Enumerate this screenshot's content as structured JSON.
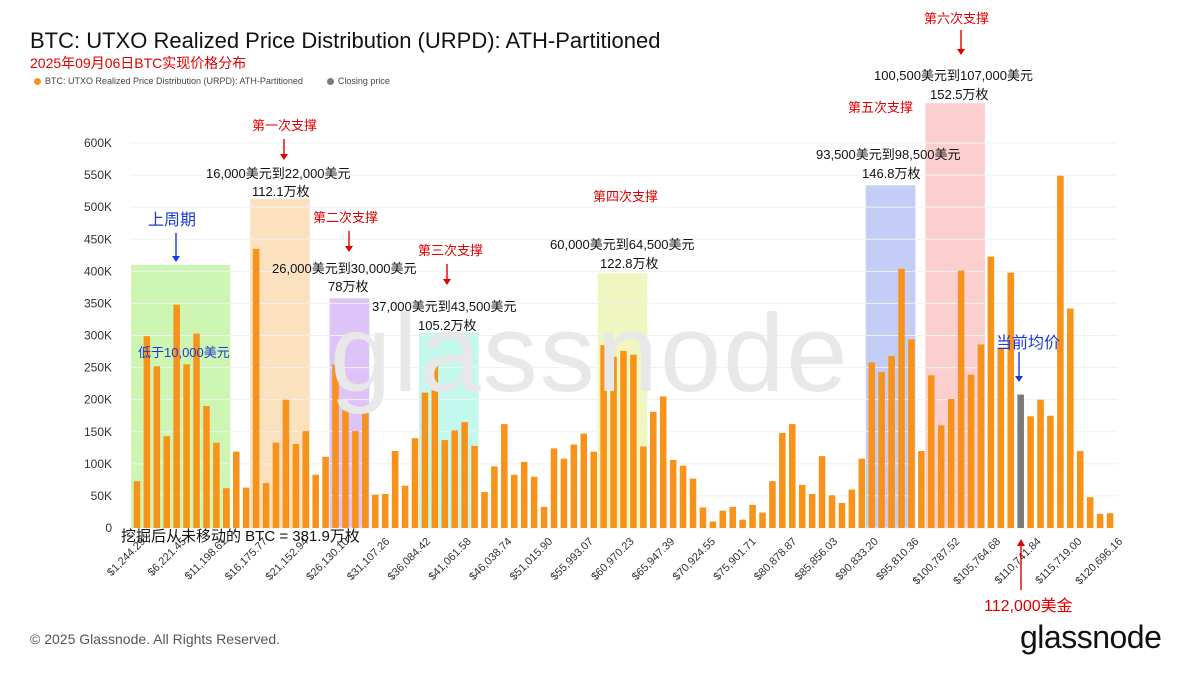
{
  "header": {
    "title": "BTC: UTXO Realized Price Distribution (URPD): ATH-Partitioned",
    "subtitle": "2025年09月06日BTC实现价格分布"
  },
  "legend": {
    "series_label": "BTC: UTXO Realized Price Distribution (URPD): ATH-Partitioned",
    "closing_label": "Closing price"
  },
  "footer": {
    "copyright": "© 2025 Glassnode. All Rights Reserved.",
    "logo": "glassnode"
  },
  "watermark": "glassnode",
  "annotations": {
    "prev_cycle": "上周期",
    "below_10k": "低于10,000美元",
    "s1_title": "第一次支撑",
    "s1_range": "16,000美元到22,000美元",
    "s1_amount": "112.1万枚",
    "s2_title": "第二次支撑",
    "s2_range": "26,000美元到30,000美元",
    "s2_amount": "78万枚",
    "s3_title": "第三次支撑",
    "s3_range": "37,000美元到43,500美元",
    "s3_amount": "105.2万枚",
    "s4_title": "第四次支撑",
    "s4_range": "60,000美元到64,500美元",
    "s4_amount": "122.8万枚",
    "s5_title": "第五次支撑",
    "s5_range": "93,500美元到98,500美元",
    "s5_amount": "146.8万枚",
    "s6_title": "第六次支撑",
    "s6_range": "100,500美元到107,000美元",
    "s6_amount": "152.5万枚",
    "avg_price": "当前均价",
    "price_112k": "112,000美金",
    "unmoved": "挖掘后从未移动的 BTC = 381.9万枚"
  },
  "colors": {
    "bar": "#f7931a",
    "closing": "#7a7a7a",
    "zone_green": "#c6f5a6",
    "zone_orange": "#fbdcb4",
    "zone_purple": "#d7b8f6",
    "zone_cyan": "#b8f7ea",
    "zone_yellow": "#ecf5b5",
    "zone_blue": "#b9c4f5",
    "zone_pink": "#fbc7c7",
    "annotation_red": "#e00000",
    "annotation_blue": "#1a3ad6"
  },
  "chart_data": {
    "type": "bar",
    "ylim": [
      0,
      600000
    ],
    "y_ticks": [
      "0",
      "50K",
      "100K",
      "150K",
      "200K",
      "250K",
      "300K",
      "350K",
      "400K",
      "450K",
      "500K",
      "550K",
      "600K"
    ],
    "x_tick_labels": [
      "$1,244.29",
      "$6,221.45",
      "$11,198.61",
      "$16,175.77",
      "$21,152.94",
      "$26,130.10",
      "$31,107.26",
      "$36,084.42",
      "$41,061.58",
      "$46,038.74",
      "$51,015.90",
      "$55,993.07",
      "$60,970.23",
      "$65,947.39",
      "$70,924.55",
      "$75,901.71",
      "$80,878.87",
      "$85,856.03",
      "$90,833.20",
      "$95,810.36",
      "$100,787.52",
      "$105,764.68",
      "$110,741.84",
      "$115,719.00",
      "$120,696.16"
    ],
    "series": [
      {
        "name": "BTC: UTXO Realized Price Distribution (URPD): ATH-Partitioned",
        "values": [
          73000,
          299000,
          252000,
          143000,
          348000,
          255000,
          303000,
          190000,
          133000,
          62000,
          119000,
          63000,
          435000,
          70000,
          133000,
          200000,
          131000,
          151000,
          83000,
          111000,
          255000,
          183000,
          151000,
          190000,
          52000,
          53000,
          120000,
          66000,
          140000,
          211000,
          256000,
          137000,
          152000,
          165000,
          128000,
          56000,
          96000,
          162000,
          83000,
          103000,
          80000,
          33000,
          124000,
          108000,
          130000,
          147000,
          119000,
          285000,
          267000,
          276000,
          270000,
          127000,
          181000,
          205000,
          106000,
          97000,
          77000,
          32000,
          10000,
          27000,
          33000,
          13000,
          36000,
          24000,
          73000,
          148000,
          162000,
          67000,
          53000,
          112000,
          51000,
          39000,
          60000,
          108000,
          258000,
          243000,
          268000,
          404000,
          294000,
          120000,
          238000,
          160000,
          201000,
          401000,
          239000,
          286000,
          423000,
          281000,
          398000,
          208000,
          174000,
          200000,
          175000,
          549000,
          342000,
          120000,
          48000,
          22000,
          23000
        ]
      }
    ],
    "closing_price_bar_index": 89,
    "closing_price_value": 208000
  }
}
